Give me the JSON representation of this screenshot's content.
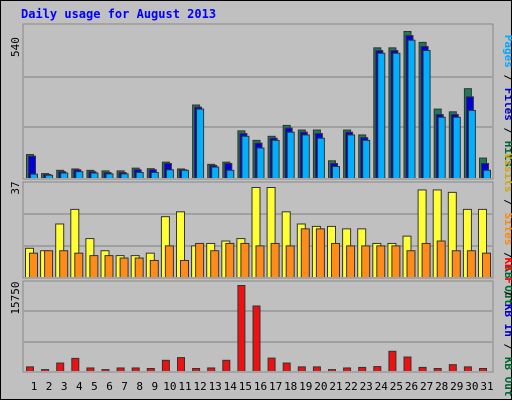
{
  "title": "Daily usage for August 2013",
  "panels": {
    "top": {
      "max_label": "540",
      "legend": [
        {
          "text": "Pages",
          "color": "#00aaff"
        },
        {
          "text": " / ",
          "color": "#000000"
        },
        {
          "text": "Files",
          "color": "#0000cc"
        },
        {
          "text": " / ",
          "color": "#000000"
        },
        {
          "text": "Hits",
          "color": "#006633"
        }
      ]
    },
    "middle": {
      "max_label": "37",
      "legend": [
        {
          "text": "Visits",
          "color": "#ccaa00"
        },
        {
          "text": " / ",
          "color": "#000000"
        },
        {
          "text": "Sites",
          "color": "#ff8800"
        },
        {
          "text": " / ",
          "color": "#000000"
        },
        {
          "text": "KB Out",
          "color": "#006633"
        }
      ]
    },
    "bottom": {
      "max_label": "15750",
      "legend": [
        {
          "text": "KB F",
          "color": "#ff0000"
        },
        {
          "text": " / ",
          "color": "#000000"
        },
        {
          "text": "KB In",
          "color": "#0000cc"
        },
        {
          "text": " / ",
          "color": "#000000"
        },
        {
          "text": "KB Out",
          "color": "#006633"
        }
      ]
    }
  },
  "colors": {
    "hits": "#1e7a5a",
    "files": "#0000dd",
    "pages": "#00b0ff",
    "visits": "#ffff33",
    "sites": "#ff8c1a",
    "kbytes": "#ee1111",
    "weekday_label": "#000000",
    "weekend_label": "#00804a"
  },
  "chart_data": [
    {
      "type": "bar",
      "title": "Daily usage for August 2013",
      "categories": [
        "1",
        "2",
        "3",
        "4",
        "5",
        "6",
        "7",
        "8",
        "9",
        "10",
        "11",
        "12",
        "13",
        "14",
        "15",
        "16",
        "17",
        "18",
        "19",
        "20",
        "21",
        "22",
        "23",
        "24",
        "25",
        "26",
        "27",
        "28",
        "29",
        "30",
        "31"
      ],
      "weekend_days": [
        "3",
        "4",
        "10",
        "11",
        "17",
        "18",
        "24",
        "25",
        "31"
      ],
      "ylim": [
        0,
        540
      ],
      "series": [
        {
          "name": "Hits",
          "values": [
            88,
            18,
            30,
            35,
            30,
            28,
            28,
            38,
            36,
            60,
            35,
            270,
            52,
            60,
            175,
            140,
            155,
            195,
            178,
            178,
            65,
            178,
            160,
            480,
            480,
            540,
            500,
            255,
            245,
            330,
            75
          ]
        },
        {
          "name": "Files",
          "values": [
            82,
            15,
            25,
            32,
            25,
            22,
            22,
            32,
            32,
            55,
            32,
            262,
            48,
            55,
            165,
            130,
            148,
            185,
            170,
            165,
            55,
            170,
            150,
            470,
            470,
            525,
            485,
            235,
            235,
            300,
            55
          ]
        },
        {
          "name": "Pages",
          "values": [
            16,
            12,
            20,
            25,
            20,
            17,
            17,
            22,
            22,
            32,
            30,
            255,
            42,
            30,
            155,
            112,
            140,
            170,
            160,
            148,
            44,
            160,
            140,
            460,
            460,
            508,
            470,
            225,
            225,
            250,
            30
          ]
        }
      ]
    },
    {
      "type": "bar",
      "ylim": [
        0,
        37
      ],
      "series": [
        {
          "name": "Visits",
          "values": [
            12,
            11,
            22,
            28,
            16,
            11,
            9,
            9,
            10,
            25,
            27,
            13,
            14,
            15,
            16,
            37,
            37,
            27,
            22,
            21,
            21,
            20,
            20,
            14,
            14,
            17,
            36,
            36,
            35,
            28,
            28
          ]
        },
        {
          "name": "Sites",
          "values": [
            10,
            11,
            11,
            10,
            9,
            9,
            8,
            8,
            7,
            13,
            7,
            14,
            11,
            14,
            14,
            13,
            14,
            13,
            20,
            20,
            14,
            13,
            13,
            13,
            13,
            11,
            14,
            15,
            11,
            11,
            10
          ]
        }
      ]
    },
    {
      "type": "bar",
      "ylim": [
        0,
        15750
      ],
      "series": [
        {
          "name": "KB F",
          "values": [
            850,
            350,
            1550,
            2400,
            650,
            350,
            650,
            650,
            550,
            2050,
            2550,
            550,
            650,
            2050,
            15750,
            12000,
            2450,
            1550,
            850,
            850,
            350,
            650,
            750,
            900,
            3700,
            2650,
            750,
            550,
            1250,
            850,
            550
          ]
        }
      ]
    }
  ]
}
